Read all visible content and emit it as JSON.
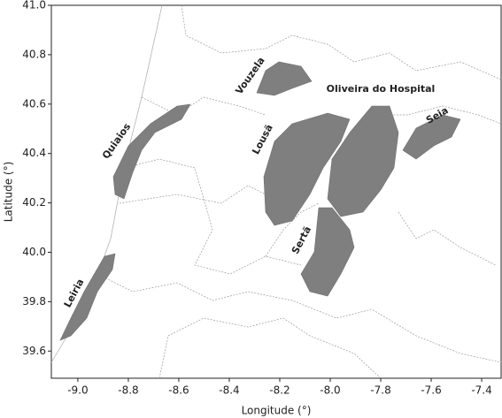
{
  "chart_data": {
    "type": "map",
    "xlabel": "Longitude (°)",
    "ylabel": "Latitude (°)",
    "xlim": [
      -9.105,
      -7.323
    ],
    "ylim": [
      39.49,
      41.0
    ],
    "xticks": [
      {
        "value": -9,
        "label": "-9.0"
      },
      -8.8,
      -8.6,
      -8.4,
      -8.2,
      {
        "value": -8,
        "label": "-8.0"
      },
      -7.8,
      -7.6,
      -7.4
    ],
    "yticks": [
      {
        "value": 39.6,
        "label": "39.6"
      },
      39.8,
      {
        "value": 40,
        "label": "40.0"
      },
      40.2,
      40.4,
      40.6,
      40.8,
      {
        "value": 41,
        "label": "41.0"
      }
    ],
    "regions": [
      "Leiria",
      "Quiaios",
      "Vouzela",
      "Lousã",
      "Oliveira do Hospital",
      "Sertã",
      "Seia"
    ]
  }
}
